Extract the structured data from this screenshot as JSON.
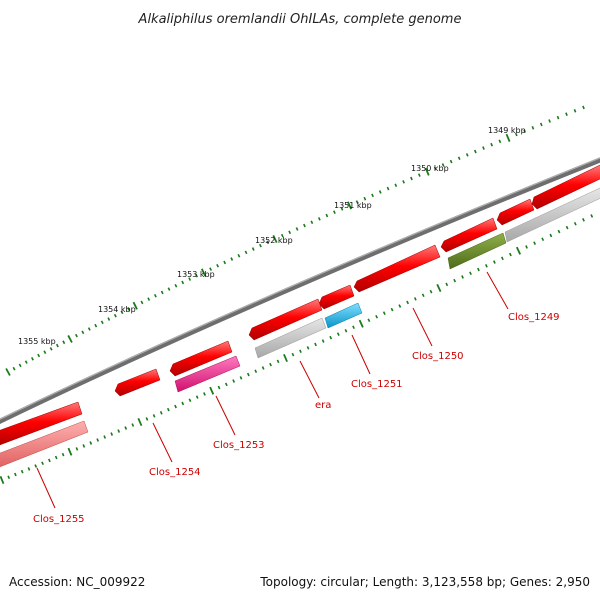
{
  "title": "Alkaliphilus oremlandii OhILAs, complete genome",
  "footer": {
    "accession": "Accession: NC_009922",
    "stats": "Topology: circular; Length: 3,123,558 bp; Genes: 2,950"
  },
  "scale_labels": [
    "1349 kbp",
    "1350 kbp",
    "1351 kbp",
    "1352 kbp",
    "1353 kbp",
    "1354 kbp",
    "1355 kbp"
  ],
  "gene_labels": [
    "Clos_1249",
    "Clos_1250",
    "Clos_1251",
    "era",
    "Clos_1253",
    "Clos_1254",
    "Clos_1255"
  ],
  "colors": {
    "backbone": "#7a7a7a",
    "cds": "#ee0000",
    "tick": "#1a7a1a",
    "gene_label": "#cc0000",
    "feature_grey": "#c8c8c8",
    "feature_olive": "#6b8e23",
    "feature_cyan": "#1ab8f0",
    "feature_pink": "#ff1493",
    "feature_salmon": "#f08080"
  }
}
